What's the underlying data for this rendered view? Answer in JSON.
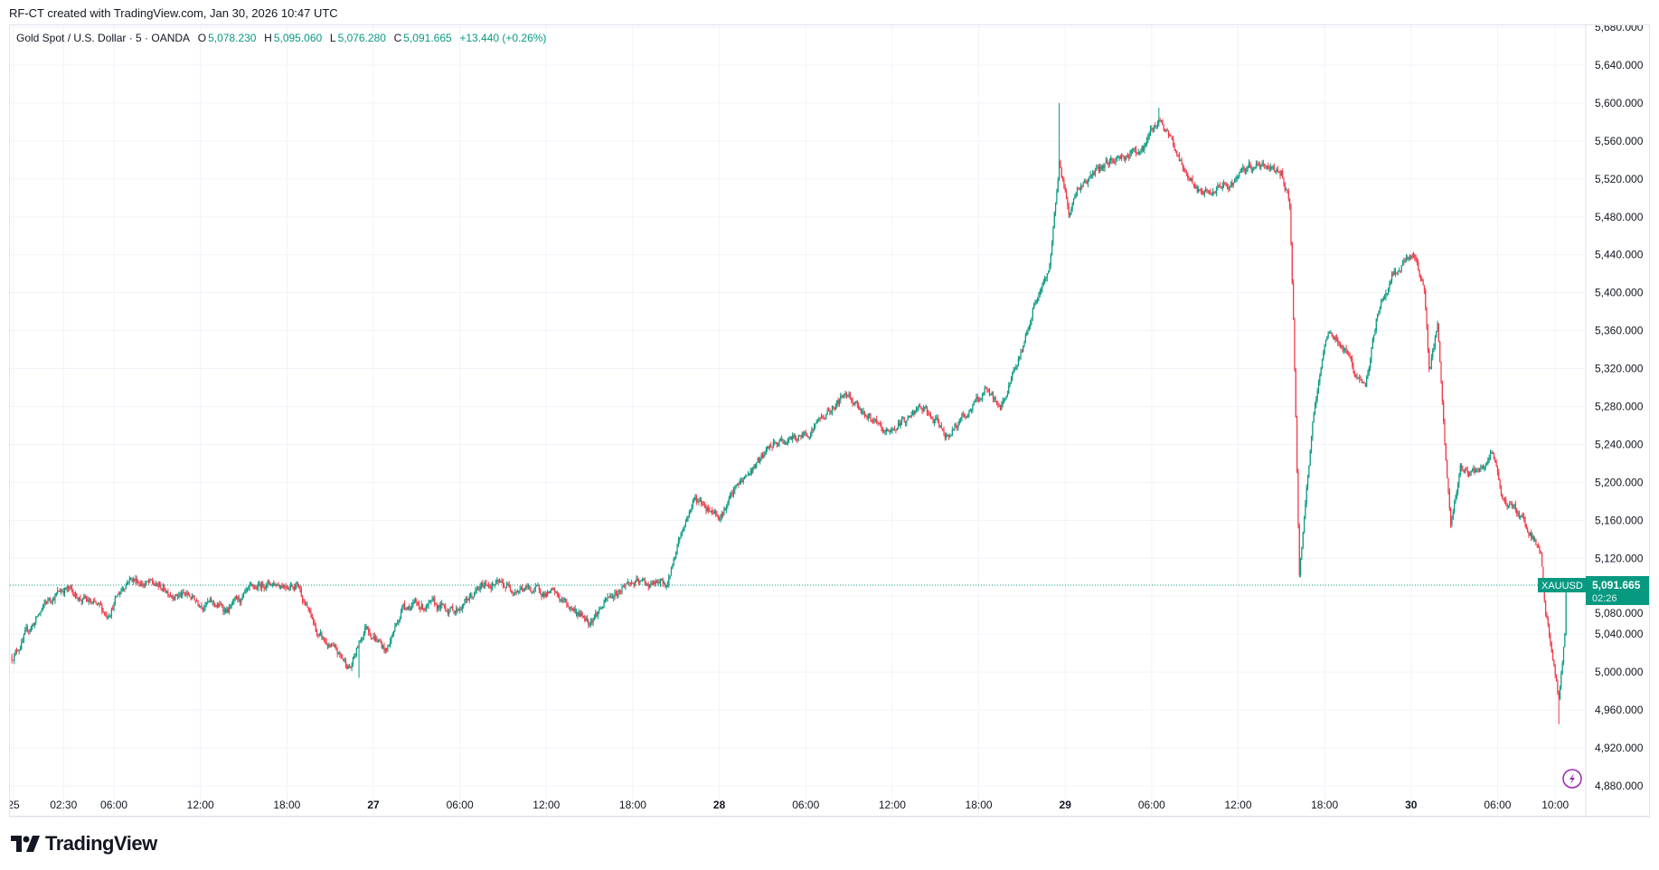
{
  "credit": "RF-CT created with TradingView.com, Jan 30, 2026 10:47 UTC",
  "legend": {
    "symbol": "Gold Spot / U.S. Dollar · 5 · OANDA",
    "o_label": "O",
    "o": "5,078.230",
    "h_label": "H",
    "h": "5,095.060",
    "l_label": "L",
    "l": "5,076.280",
    "c_label": "C",
    "c": "5,091.665",
    "change": "+13.440 (+0.26%)"
  },
  "price_label": {
    "symbol": "XAUUSD",
    "price": "5,091.665",
    "countdown": "02:26"
  },
  "logo": "TradingView",
  "colors": {
    "up": "#089981",
    "down": "#f23645",
    "grid": "#f0f3fa",
    "accent": "#9c27b0"
  },
  "chart_data": {
    "type": "candlestick",
    "interval": "5",
    "ylim": [
      4860,
      5690
    ],
    "y_ticks": [
      "5,680.000",
      "5,640.000",
      "5,600.000",
      "5,560.000",
      "5,520.000",
      "5,480.000",
      "5,440.000",
      "5,400.000",
      "5,360.000",
      "5,320.000",
      "5,280.000",
      "5,240.000",
      "5,200.000",
      "5,160.000",
      "5,120.000",
      "5,080.000",
      "5,040.000",
      "5,000.000",
      "4,960.000",
      "4,920.000",
      "4,880.000"
    ],
    "x_ticks": [
      {
        "label": "25",
        "time": "01-26 00:00",
        "bold": false
      },
      {
        "label": "02:30",
        "time": "01-26 02:30",
        "bold": false
      },
      {
        "label": "06:00",
        "time": "01-26 06:00",
        "bold": false
      },
      {
        "label": "12:00",
        "time": "01-26 12:00",
        "bold": false
      },
      {
        "label": "18:00",
        "time": "01-26 18:00",
        "bold": false
      },
      {
        "label": "27",
        "time": "01-27 00:00",
        "bold": true
      },
      {
        "label": "06:00",
        "time": "01-27 06:00",
        "bold": false
      },
      {
        "label": "12:00",
        "time": "01-27 12:00",
        "bold": false
      },
      {
        "label": "18:00",
        "time": "01-27 18:00",
        "bold": false
      },
      {
        "label": "28",
        "time": "01-28 00:00",
        "bold": true
      },
      {
        "label": "06:00",
        "time": "01-28 06:00",
        "bold": false
      },
      {
        "label": "12:00",
        "time": "01-28 12:00",
        "bold": false
      },
      {
        "label": "18:00",
        "time": "01-28 18:00",
        "bold": false
      },
      {
        "label": "29",
        "time": "01-29 00:00",
        "bold": true
      },
      {
        "label": "06:00",
        "time": "01-29 06:00",
        "bold": false
      },
      {
        "label": "12:00",
        "time": "01-29 12:00",
        "bold": false
      },
      {
        "label": "18:00",
        "time": "01-29 18:00",
        "bold": false
      },
      {
        "label": "30",
        "time": "01-30 00:00",
        "bold": true
      },
      {
        "label": "06:00",
        "time": "01-30 06:00",
        "bold": false
      },
      {
        "label": "10:00",
        "time": "01-30 10:00",
        "bold": false
      }
    ],
    "last_price": 5091.665,
    "approx_closes": [
      [
        "01-25 22:55",
        5016
      ],
      [
        "01-26 01:30",
        5077
      ],
      [
        "01-26 02:35",
        5089
      ],
      [
        "01-26 05:30",
        5061
      ],
      [
        "01-26 07:00",
        5100
      ],
      [
        "01-26 09:10",
        5089
      ],
      [
        "01-26 13:55",
        5066
      ],
      [
        "01-26 16:30",
        5094
      ],
      [
        "01-26 18:45",
        5094
      ],
      [
        "01-26 20:10",
        5038
      ],
      [
        "01-26 22:25",
        5005
      ],
      [
        "01-26 23:30",
        5050
      ],
      [
        "01-27 00:55",
        5022
      ],
      [
        "01-27 02:05",
        5072
      ],
      [
        "01-27 05:45",
        5066
      ],
      [
        "01-27 07:55",
        5094
      ],
      [
        "01-27 12:20",
        5083
      ],
      [
        "01-27 14:55",
        5055
      ],
      [
        "01-27 17:30",
        5094
      ],
      [
        "01-27 20:25",
        5092
      ],
      [
        "01-27 21:10",
        5139
      ],
      [
        "01-27 22:15",
        5183
      ],
      [
        "01-28 00:05",
        5167
      ],
      [
        "01-28 01:30",
        5200
      ],
      [
        "01-28 03:45",
        5239
      ],
      [
        "01-28 05:55",
        5250
      ],
      [
        "01-28 08:55",
        5295
      ],
      [
        "01-28 11:25",
        5250
      ],
      [
        "01-28 14:00",
        5278
      ],
      [
        "01-28 15:50",
        5250
      ],
      [
        "01-28 18:25",
        5295
      ],
      [
        "01-28 19:30",
        5278
      ],
      [
        "01-28 21:00",
        5340
      ],
      [
        "01-28 21:45",
        5384
      ],
      [
        "01-28 22:50",
        5418
      ],
      [
        "01-28 23:05",
        5451
      ],
      [
        "01-28 23:35",
        5540
      ],
      [
        "01-29 00:15",
        5485
      ],
      [
        "01-29 01:00",
        5513
      ],
      [
        "01-29 03:15",
        5540
      ],
      [
        "01-29 05:25",
        5552
      ],
      [
        "01-29 06:30",
        5585
      ],
      [
        "01-29 08:20",
        5529
      ],
      [
        "01-29 09:30",
        5501
      ],
      [
        "01-29 11:20",
        5513
      ],
      [
        "01-29 13:10",
        5535
      ],
      [
        "01-29 15:00",
        5529
      ],
      [
        "01-29 15:35",
        5496
      ],
      [
        "01-29 15:50",
        5373
      ],
      [
        "01-29 16:15",
        5105
      ],
      [
        "01-29 17:10",
        5261
      ],
      [
        "01-29 18:15",
        5362
      ],
      [
        "01-29 19:20",
        5340
      ],
      [
        "01-29 20:50",
        5295
      ],
      [
        "01-29 21:35",
        5373
      ],
      [
        "01-29 22:40",
        5418
      ],
      [
        "01-30 00:10",
        5440
      ],
      [
        "01-30 00:55",
        5407
      ],
      [
        "01-30 01:15",
        5317
      ],
      [
        "01-30 01:50",
        5362
      ],
      [
        "01-30 02:20",
        5239
      ],
      [
        "01-30 02:45",
        5150
      ],
      [
        "01-30 03:25",
        5217
      ],
      [
        "01-30 04:35",
        5206
      ],
      [
        "01-30 05:40",
        5228
      ],
      [
        "01-30 06:25",
        5183
      ],
      [
        "01-30 07:50",
        5161
      ],
      [
        "01-30 09:00",
        5128
      ],
      [
        "01-30 09:20",
        5061
      ],
      [
        "01-30 09:55",
        5005
      ],
      [
        "01-30 10:15",
        4972
      ],
      [
        "01-30 10:40",
        5038
      ],
      [
        "01-30 10:45",
        5091.665
      ]
    ],
    "extremes": [
      {
        "time": "01-26 23:00",
        "low": 4994
      },
      {
        "time": "01-28 23:35",
        "high": 5600
      },
      {
        "time": "01-29 06:30",
        "high": 5595
      },
      {
        "time": "01-29 16:15",
        "low": 5100
      },
      {
        "time": "01-30 10:15",
        "low": 4945
      }
    ]
  }
}
